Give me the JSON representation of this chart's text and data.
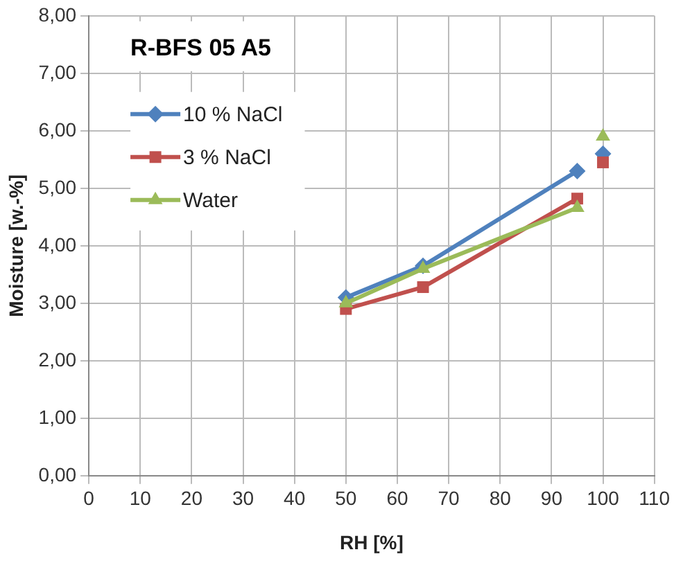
{
  "chart_data": {
    "type": "line",
    "title": "R-BFS 05 A5",
    "xlabel": "RH [%]",
    "ylabel": "Moisture [w.-%]",
    "x": [
      50,
      65,
      95,
      100
    ],
    "series": [
      {
        "name": "10 % NaCl",
        "color": "#4f81bd",
        "marker": "diamond",
        "values": [
          3.1,
          3.65,
          5.3,
          null
        ]
      },
      {
        "name": "3 % NaCl",
        "color": "#c0504d",
        "marker": "square",
        "values": [
          2.9,
          3.28,
          4.82,
          null
        ]
      },
      {
        "name": "Water",
        "color": "#9bbb59",
        "marker": "triangle",
        "values": [
          3.0,
          3.6,
          4.66,
          null
        ]
      },
      {
        "type": "scatter",
        "color": "#4f81bd",
        "marker": "diamond",
        "values": [
          null,
          null,
          null,
          5.6
        ]
      },
      {
        "type": "scatter",
        "color": "#c0504d",
        "marker": "square",
        "values": [
          null,
          null,
          null,
          5.45
        ]
      },
      {
        "type": "scatter",
        "color": "#9bbb59",
        "marker": "triangle",
        "values": [
          null,
          null,
          null,
          5.9
        ]
      }
    ],
    "xlim": [
      0,
      110
    ],
    "xticks": [
      0,
      10,
      20,
      30,
      40,
      50,
      60,
      70,
      80,
      90,
      100,
      110
    ],
    "ylim": [
      0,
      8
    ],
    "yticks": [
      {
        "value": 0,
        "label": "0,00"
      },
      {
        "value": 1,
        "label": "1,00"
      },
      {
        "value": 2,
        "label": "2,00"
      },
      {
        "value": 3,
        "label": "3,00"
      },
      {
        "value": 4,
        "label": "4,00"
      },
      {
        "value": 5,
        "label": "5,00"
      },
      {
        "value": 6,
        "label": "6,00"
      },
      {
        "value": 7,
        "label": "7,00"
      },
      {
        "value": 8,
        "label": "8,00"
      }
    ],
    "grid": true,
    "legend": "top left",
    "line_style": "solid"
  }
}
